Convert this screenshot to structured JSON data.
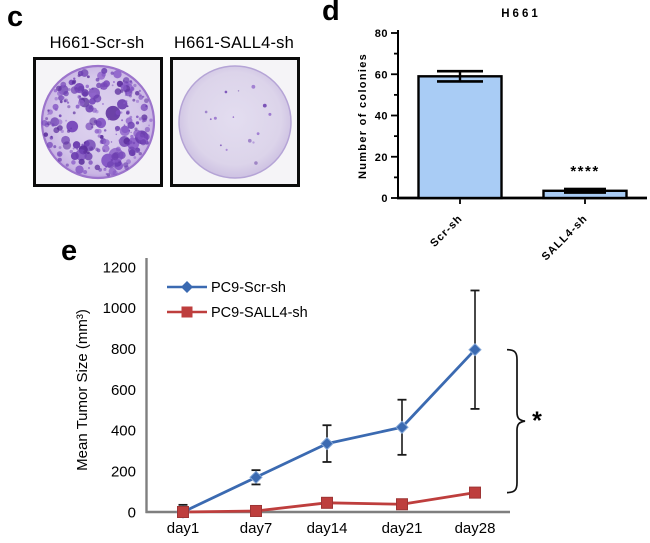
{
  "panels": {
    "c": {
      "label": "c",
      "images": [
        {
          "title": "H661-Scr-sh",
          "appearance": "dish densely covered with purple stained colonies"
        },
        {
          "title": "H661-SALL4-sh",
          "appearance": "pale dish with very few tiny colonies"
        }
      ]
    },
    "d": {
      "label": "d"
    },
    "e": {
      "label": "e"
    }
  },
  "chart_data": [
    {
      "type": "bar",
      "panel": "d",
      "title": "H661",
      "ylabel": "Number of colonies",
      "categories": [
        "Scr-sh",
        "SALL4-sh"
      ],
      "values": [
        59,
        3.5
      ],
      "errors": [
        2.5,
        1.5
      ],
      "ylim": [
        0,
        80
      ],
      "yticks": [
        0,
        20,
        40,
        60,
        80
      ],
      "minor_tick_step": 10,
      "significance": "****",
      "bar_color": "#A9CCF5",
      "grid": false,
      "legend_position": "none"
    },
    {
      "type": "line",
      "panel": "e",
      "title": "",
      "ylabel": "Mean Tumor Size (mm³)",
      "xlabel": "",
      "categories": [
        "day1",
        "day7",
        "day14",
        "day21",
        "day28"
      ],
      "series": [
        {
          "name": "PC9-Scr-sh",
          "color": "#3B6AB1",
          "marker": "diamond",
          "values": [
            0,
            170,
            335,
            415,
            795
          ],
          "errors": [
            35,
            35,
            90,
            135,
            290
          ]
        },
        {
          "name": "PC9-SALL4-sh",
          "color": "#BE3E3D",
          "marker": "square",
          "values": [
            0,
            5,
            45,
            38,
            95
          ],
          "errors": [
            0,
            0,
            0,
            0,
            0
          ]
        }
      ],
      "ylim": [
        0,
        1200
      ],
      "yticks": [
        0,
        200,
        400,
        600,
        800,
        1000,
        1200
      ],
      "significance": "*",
      "grid": false,
      "legend_position": "top-left",
      "axis_color": "#7F7F7F"
    }
  ],
  "colors": {
    "bar_fill": "#A9CCF5",
    "scr_line_blue": "#3B6AB1",
    "sall4_line_red": "#BE3E3D",
    "axis_gray": "#7F7F7F",
    "colony_purple": "#7A4CBC",
    "dish_base": "#D8CBEB",
    "dish_base_sparse": "#DFD8EC"
  }
}
